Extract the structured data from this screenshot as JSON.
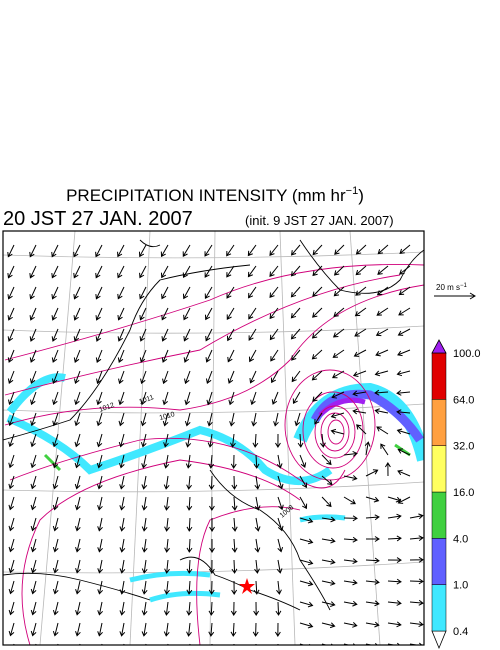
{
  "title": {
    "main": "PRECIPITATION INTENSITY (mm hr",
    "exponent": "−1",
    "end": ")"
  },
  "valid_time": "20 JST 27 JAN. 2007",
  "init_time": "(init. 9 JST 27 JAN. 2007)",
  "wind_reference": {
    "text": "20 m s",
    "exponent": "−1"
  },
  "isobar_labels": [
    "1012",
    "1011",
    "1010",
    "1008"
  ],
  "colorbar": {
    "levels": [
      "0.4",
      "1.0",
      "4.0",
      "16.0",
      "32.0",
      "64.0",
      "100.0"
    ],
    "colors": [
      "#40e8ff",
      "#6060ff",
      "#40d040",
      "#ffff60",
      "#ffa040",
      "#e00000"
    ],
    "over_color": "#a020f0"
  }
}
